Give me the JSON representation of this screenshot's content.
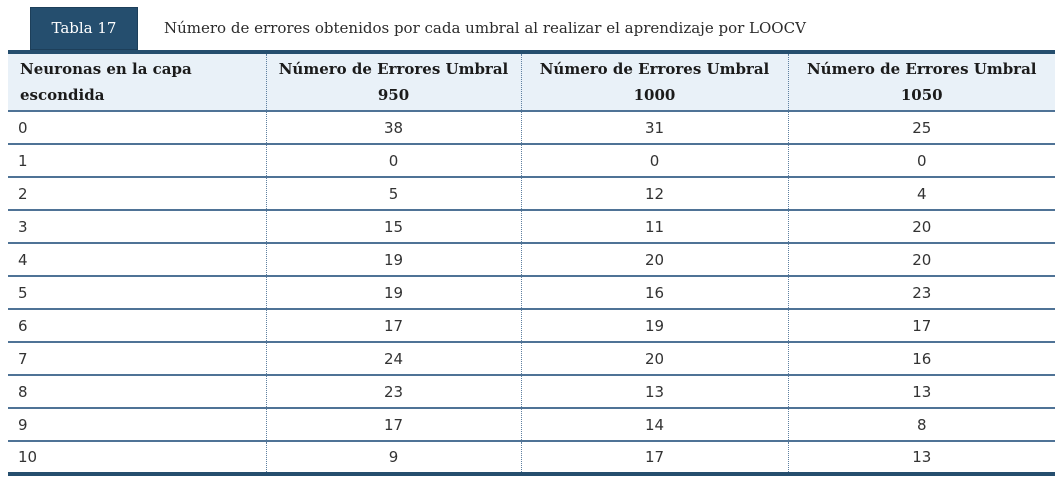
{
  "colors": {
    "navy": "#254e6e",
    "steel_blue_rule": "#4f7396",
    "dotted_divider": "#5d7fa0",
    "header_bg": "#e9f1f8",
    "body_text": "#333333",
    "tag_text": "#ffffff"
  },
  "caption": {
    "tag": "Tabla 17",
    "text": "Número de errores obtenidos por cada umbral al realizar el aprendizaje por LOOCV"
  },
  "table": {
    "headers": [
      {
        "label": "Neuronas en la capa escondida",
        "sub": ""
      },
      {
        "label": "Número de Errores Umbral",
        "sub": "950"
      },
      {
        "label": "Número de Errores Umbral",
        "sub": "1000"
      },
      {
        "label": "Número de Errores Umbral",
        "sub": "1050"
      }
    ],
    "rows": [
      [
        "0",
        "38",
        "31",
        "25"
      ],
      [
        "1",
        "0",
        "0",
        "0"
      ],
      [
        "2",
        "5",
        "12",
        "4"
      ],
      [
        "3",
        "15",
        "11",
        "20"
      ],
      [
        "4",
        "19",
        "20",
        "20"
      ],
      [
        "5",
        "19",
        "16",
        "23"
      ],
      [
        "6",
        "17",
        "19",
        "17"
      ],
      [
        "7",
        "24",
        "20",
        "16"
      ],
      [
        "8",
        "23",
        "13",
        "13"
      ],
      [
        "9",
        "17",
        "14",
        "8"
      ],
      [
        "10",
        "9",
        "17",
        "13"
      ]
    ]
  },
  "chart_data": {
    "type": "table",
    "title": "Número de errores obtenidos por cada umbral al realizar el aprendizaje por LOOCV",
    "columns": [
      "Neuronas en la capa escondida",
      "Número de Errores Umbral 950",
      "Número de Errores Umbral 1000",
      "Número de Errores Umbral 1050"
    ],
    "neuronas": [
      0,
      1,
      2,
      3,
      4,
      5,
      6,
      7,
      8,
      9,
      10
    ],
    "series": [
      {
        "name": "Umbral 950",
        "values": [
          38,
          0,
          5,
          15,
          19,
          19,
          17,
          24,
          23,
          17,
          9
        ]
      },
      {
        "name": "Umbral 1000",
        "values": [
          31,
          0,
          12,
          11,
          20,
          16,
          19,
          20,
          13,
          14,
          17
        ]
      },
      {
        "name": "Umbral 1050",
        "values": [
          25,
          0,
          4,
          20,
          20,
          23,
          17,
          16,
          13,
          8,
          13
        ]
      }
    ]
  }
}
